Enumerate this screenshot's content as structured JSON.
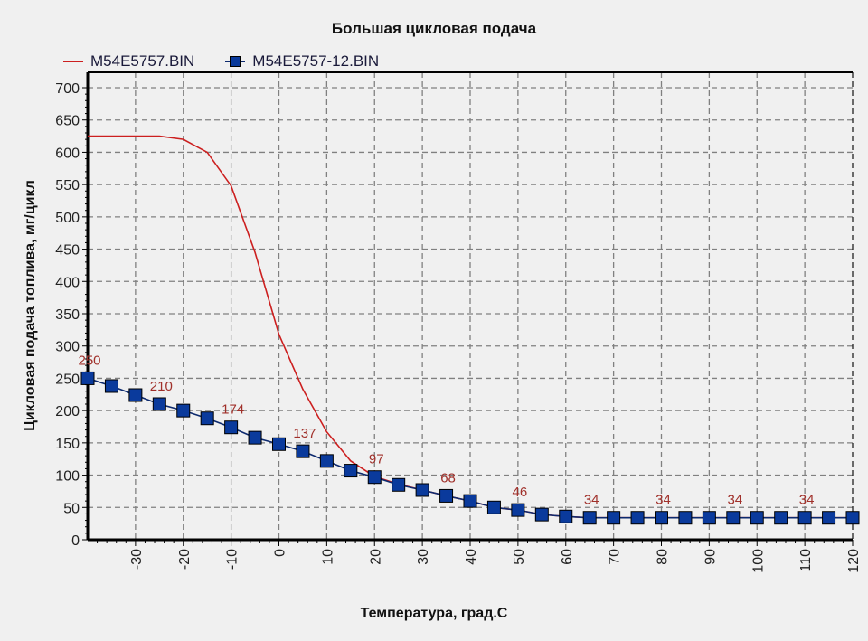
{
  "chart_data": {
    "type": "line",
    "title": "Большая цикловая подача",
    "xlabel": "Температура, град.C",
    "ylabel": "Цикловая подача топлива, мг/цикл",
    "xlim": [
      -40,
      120
    ],
    "ylim": [
      0,
      700
    ],
    "x_ticks": [
      -30,
      -20,
      -10,
      0,
      10,
      20,
      30,
      40,
      50,
      60,
      70,
      80,
      90,
      100,
      110,
      120
    ],
    "y_ticks": [
      0,
      50,
      100,
      150,
      200,
      250,
      300,
      350,
      400,
      450,
      500,
      550,
      600,
      650,
      700
    ],
    "grid": true,
    "legend_position": "top-left",
    "series": [
      {
        "name": "M54E5757.BIN",
        "color": "#cc1f1f",
        "marker": "none",
        "x": [
          -40,
          -35,
          -30,
          -25,
          -20,
          -15,
          -10,
          -5,
          0,
          5,
          10,
          15,
          20,
          25,
          30,
          35,
          40,
          45,
          50,
          55,
          60,
          65,
          70,
          75,
          80,
          85,
          90,
          95,
          100,
          105,
          110,
          115,
          120
        ],
        "values": [
          625,
          625,
          625,
          625,
          620,
          600,
          548,
          445,
          318,
          233,
          167,
          122,
          98,
          86,
          77,
          68,
          60,
          50,
          46,
          39,
          36,
          34,
          34,
          34,
          34,
          34,
          34,
          34,
          34,
          34,
          34,
          34,
          34
        ]
      },
      {
        "name": "M54E5757-12.BIN",
        "color": "#0d2a6e",
        "marker": "square",
        "marker_color": "#0a3a9c",
        "x": [
          -40,
          -35,
          -30,
          -25,
          -20,
          -15,
          -10,
          -5,
          0,
          5,
          10,
          15,
          20,
          25,
          30,
          35,
          40,
          45,
          50,
          55,
          60,
          65,
          70,
          75,
          80,
          85,
          90,
          95,
          100,
          105,
          110,
          115,
          120
        ],
        "values": [
          250,
          238,
          224,
          210,
          200,
          188,
          174,
          158,
          148,
          137,
          122,
          107,
          97,
          85,
          77,
          68,
          60,
          50,
          46,
          39,
          36,
          34,
          34,
          34,
          34,
          34,
          34,
          34,
          34,
          34,
          34,
          34,
          34
        ]
      }
    ],
    "annotations": [
      {
        "x": -40,
        "y": 250,
        "text": "250"
      },
      {
        "x": -25,
        "y": 210,
        "text": "210"
      },
      {
        "x": -10,
        "y": 174,
        "text": "174"
      },
      {
        "x": 5,
        "y": 137,
        "text": "137"
      },
      {
        "x": 20,
        "y": 97,
        "text": "97"
      },
      {
        "x": 35,
        "y": 68,
        "text": "68"
      },
      {
        "x": 50,
        "y": 46,
        "text": "46"
      },
      {
        "x": 65,
        "y": 34,
        "text": "34"
      },
      {
        "x": 80,
        "y": 34,
        "text": "34"
      },
      {
        "x": 95,
        "y": 34,
        "text": "34"
      },
      {
        "x": 110,
        "y": 34,
        "text": "34"
      }
    ]
  },
  "legend": {
    "items": [
      {
        "label": "M54E5757.BIN",
        "icon": "red-line"
      },
      {
        "label": "M54E5757-12.BIN",
        "icon": "blue-square-marker"
      }
    ]
  },
  "style": {
    "background": "#f0f0f0",
    "grid_color": "#808080",
    "annotation_color": "#a0302a",
    "axis_color": "#000000"
  }
}
